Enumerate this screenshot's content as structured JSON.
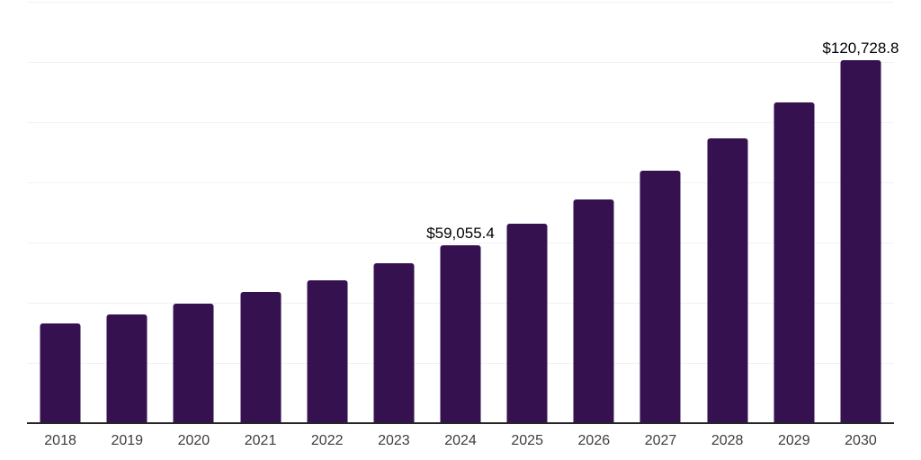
{
  "chart_data": {
    "type": "bar",
    "title": "",
    "xlabel": "",
    "ylabel": "",
    "categories": [
      "2018",
      "2019",
      "2020",
      "2021",
      "2022",
      "2023",
      "2024",
      "2025",
      "2026",
      "2027",
      "2028",
      "2029",
      "2030"
    ],
    "values": [
      33000,
      36000,
      39600,
      43500,
      47600,
      53200,
      59055.4,
      66400,
      74300,
      84000,
      94500,
      106500,
      120728.8
    ],
    "data_labels": [
      {
        "category": "2024",
        "text": "$59,055.4"
      },
      {
        "category": "2030",
        "text": "$120,728.8"
      }
    ],
    "ylim": [
      0,
      140000
    ],
    "grid_step": 20000,
    "grid": "horizontal-only",
    "legend": "none",
    "y_axis_labels": "none",
    "colors": {
      "bar": "#361150",
      "gridline": "#f2f2f2",
      "axis_line": "#262626",
      "tick_label": "#3d3d3d",
      "data_label": "#000000",
      "background": "#ffffff"
    }
  }
}
